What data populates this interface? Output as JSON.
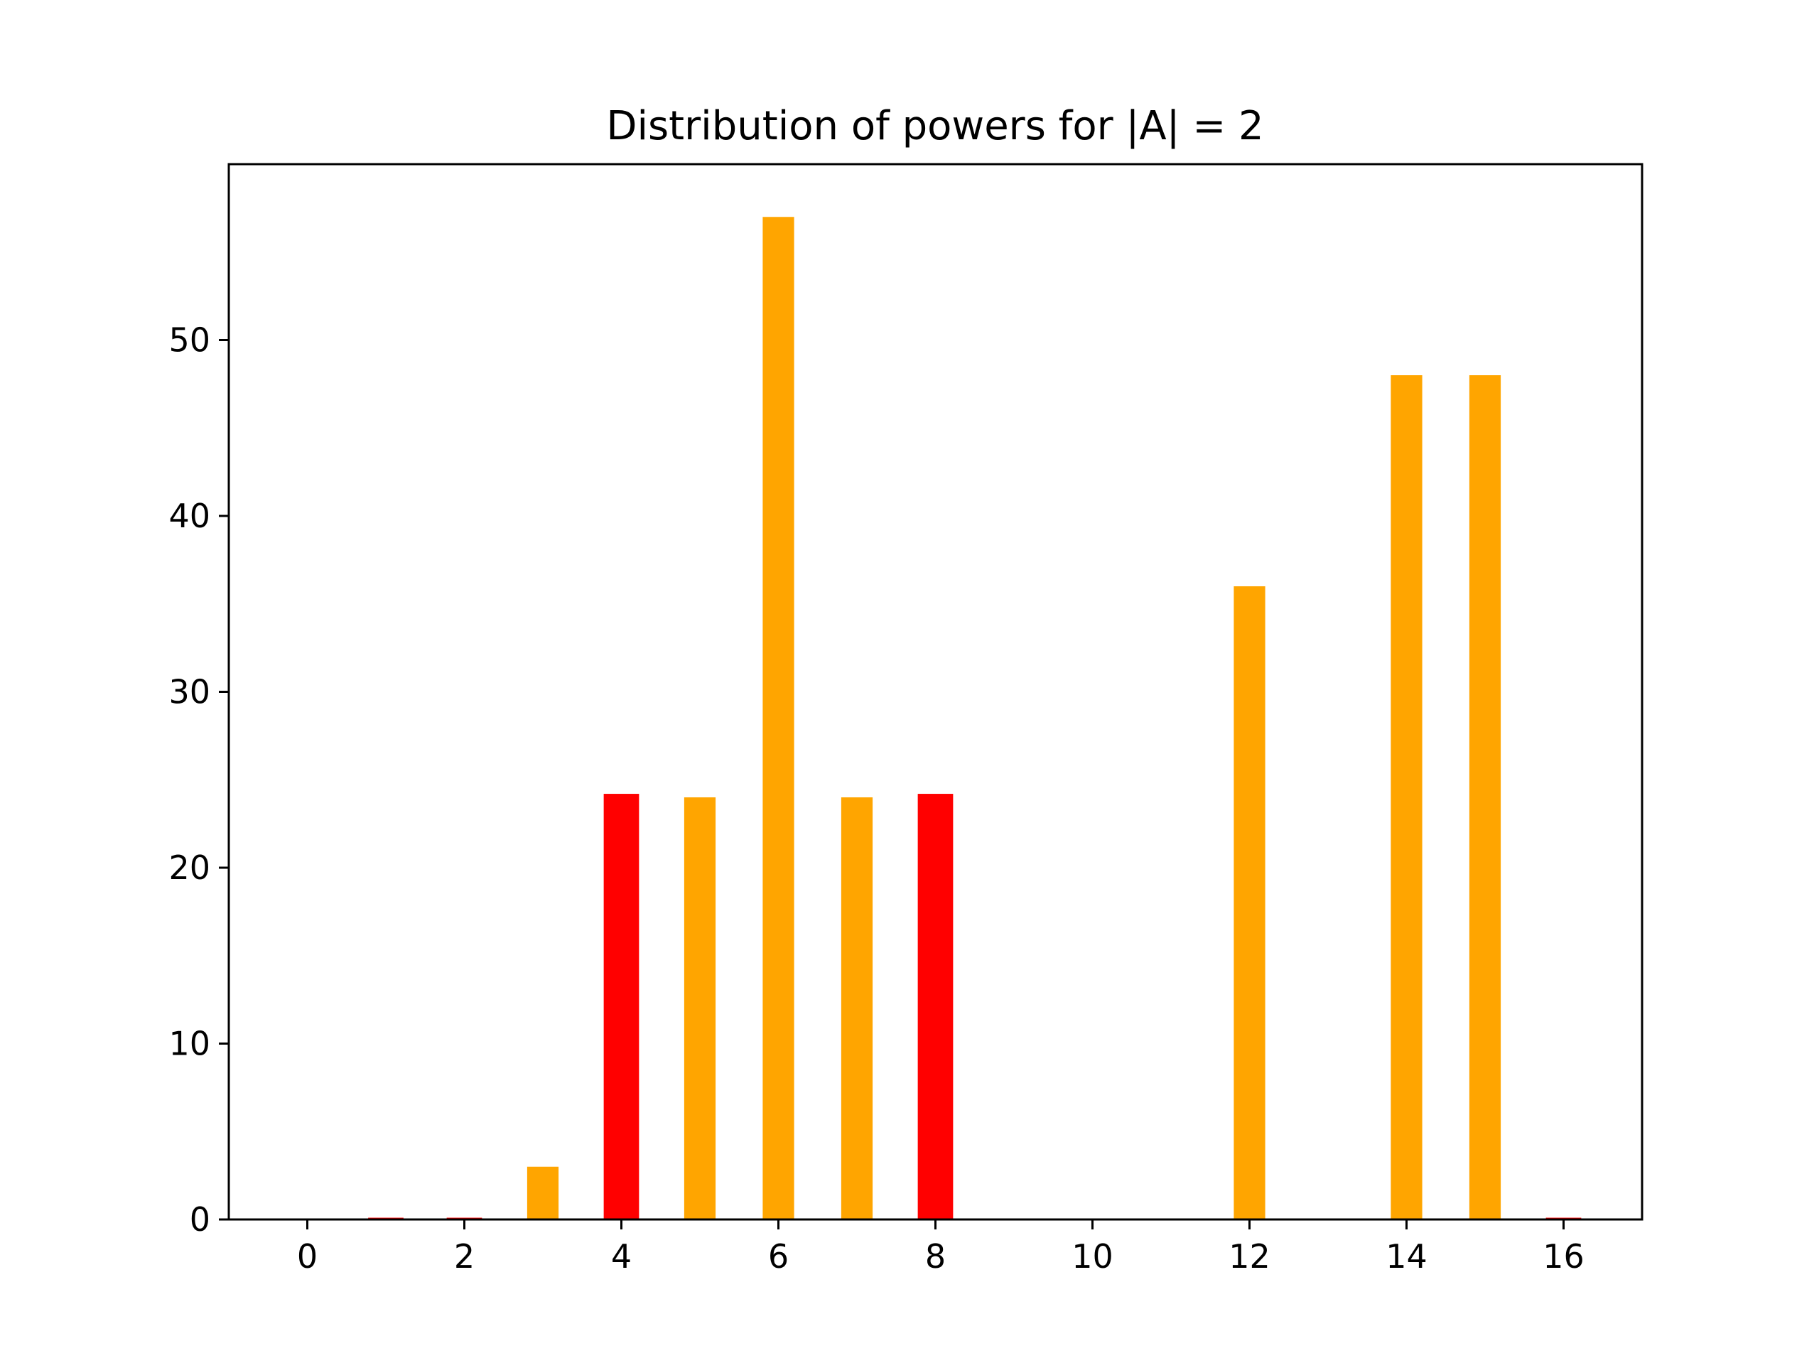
{
  "chart_data": {
    "type": "bar",
    "title": "Distribution of powers for |A| = 2",
    "xlabel": "",
    "ylabel": "",
    "xlim": [
      -1,
      17
    ],
    "ylim": [
      0,
      60
    ],
    "x_ticks": [
      "0",
      "2",
      "4",
      "6",
      "8",
      "10",
      "12",
      "14",
      "16"
    ],
    "y_ticks": [
      "0",
      "10",
      "20",
      "30",
      "40",
      "50"
    ],
    "grid": false,
    "legend": "none",
    "series": [
      {
        "color": "#ffa500",
        "bar_width": 0.4,
        "points": [
          {
            "x": 3,
            "y": 3
          },
          {
            "x": 5,
            "y": 24
          },
          {
            "x": 6,
            "y": 57
          },
          {
            "x": 7,
            "y": 24
          },
          {
            "x": 12,
            "y": 36
          },
          {
            "x": 14,
            "y": 48
          },
          {
            "x": 15,
            "y": 48
          }
        ]
      },
      {
        "color": "#ff0000",
        "bar_width": 0.45,
        "points": [
          {
            "x": 1,
            "y": 0.1
          },
          {
            "x": 2,
            "y": 0.1
          },
          {
            "x": 4,
            "y": 24.2
          },
          {
            "x": 8,
            "y": 24.2
          },
          {
            "x": 16,
            "y": 0.1
          }
        ]
      }
    ]
  }
}
